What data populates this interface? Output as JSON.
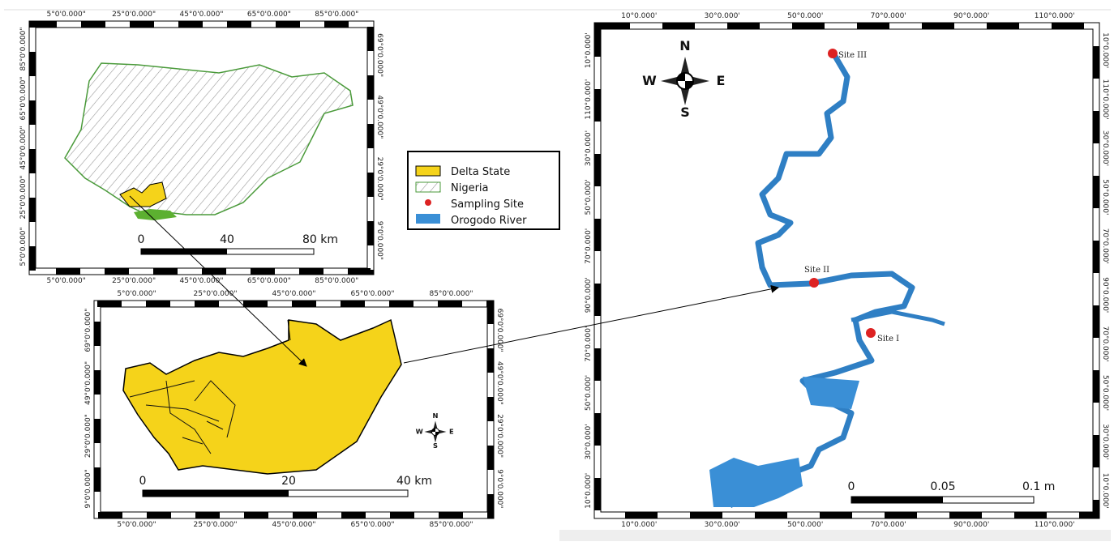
{
  "maps": [
    {
      "top_labels": [
        "5°0'0.000\"",
        "25°0'0.000\"",
        "45°0'0.000\"",
        "65°0'0.000\"",
        "85°0'0.000\""
      ],
      "bottom_labels": [
        "5°0'0.000\"",
        "25°0'0.000\"",
        "45°0'0.000\"",
        "65°0'0.000\"",
        "85°0'0.000\""
      ],
      "left_labels": [
        "85°0'0.000\"",
        "65°0'0.000\"",
        "45°0'0.000\"",
        "25°0'0.000\"",
        "5°0'0.000\""
      ],
      "right_labels": [
        "69°0'0.000\"",
        "49°0'0.000\"",
        "29°0'0.000\"",
        "9°0'0.000\""
      ],
      "scale": [
        "0",
        "40",
        "80 km"
      ]
    },
    {
      "top_labels": [
        "5°0'0.000\"",
        "25°0'0.000\"",
        "45°0'0.000\"",
        "65°0'0.000\"",
        "85°0'0.000\""
      ],
      "bottom_labels": [
        "5°0'0.000\"",
        "25°0'0.000\"",
        "45°0'0.000\"",
        "65°0'0.000\"",
        "85°0'0.000\""
      ],
      "left_labels": [
        "69°0'0.000\"",
        "49°0'0.000\"",
        "29°0'0.000\"",
        "9°0'0.000\""
      ],
      "right_labels": [
        "69°0'0.000\"",
        "49°0'0.000\"",
        "29°0'0.000\"",
        "9°0'0.000\""
      ],
      "scale": [
        "0",
        "20",
        "40 km"
      ],
      "compass": {
        "n": "N",
        "s": "S",
        "e": "E",
        "w": "W"
      }
    },
    {
      "top_labels": [
        "10°0.000'",
        "30°0.000'",
        "50°0.000'",
        "70°0.000'",
        "90°0.000'",
        "110°0.000'"
      ],
      "bottom_labels": [
        "10°0.000'",
        "30°0.000'",
        "50°0.000'",
        "70°0.000'",
        "90°0.000'",
        "110°0.000'"
      ],
      "left_labels": [
        "10°0.000'",
        "110°0.000'",
        "30°0.000'",
        "50°0.000'",
        "70°0.000'",
        "90°0.000'",
        "70°0.000'",
        "50°0.000'",
        "30°0.000'",
        "10°0.000'"
      ],
      "right_labels": [
        "10°0.000'",
        "110°0.000'",
        "30°0.000'",
        "50°0.000'",
        "70°0.000'",
        "90°0.000'",
        "70°0.000'",
        "50°0.000'",
        "30°0.000'",
        "10°0.000'"
      ],
      "scale": [
        "0",
        "0.05",
        "0.1 m"
      ],
      "compass": {
        "n": "N",
        "s": "S",
        "e": "E",
        "w": "W"
      },
      "sites": [
        "Site III",
        "Site II",
        "Site I"
      ]
    }
  ],
  "legend": [
    "Delta State",
    "Nigeria",
    "Sampling Site",
    "Orogodo River"
  ]
}
